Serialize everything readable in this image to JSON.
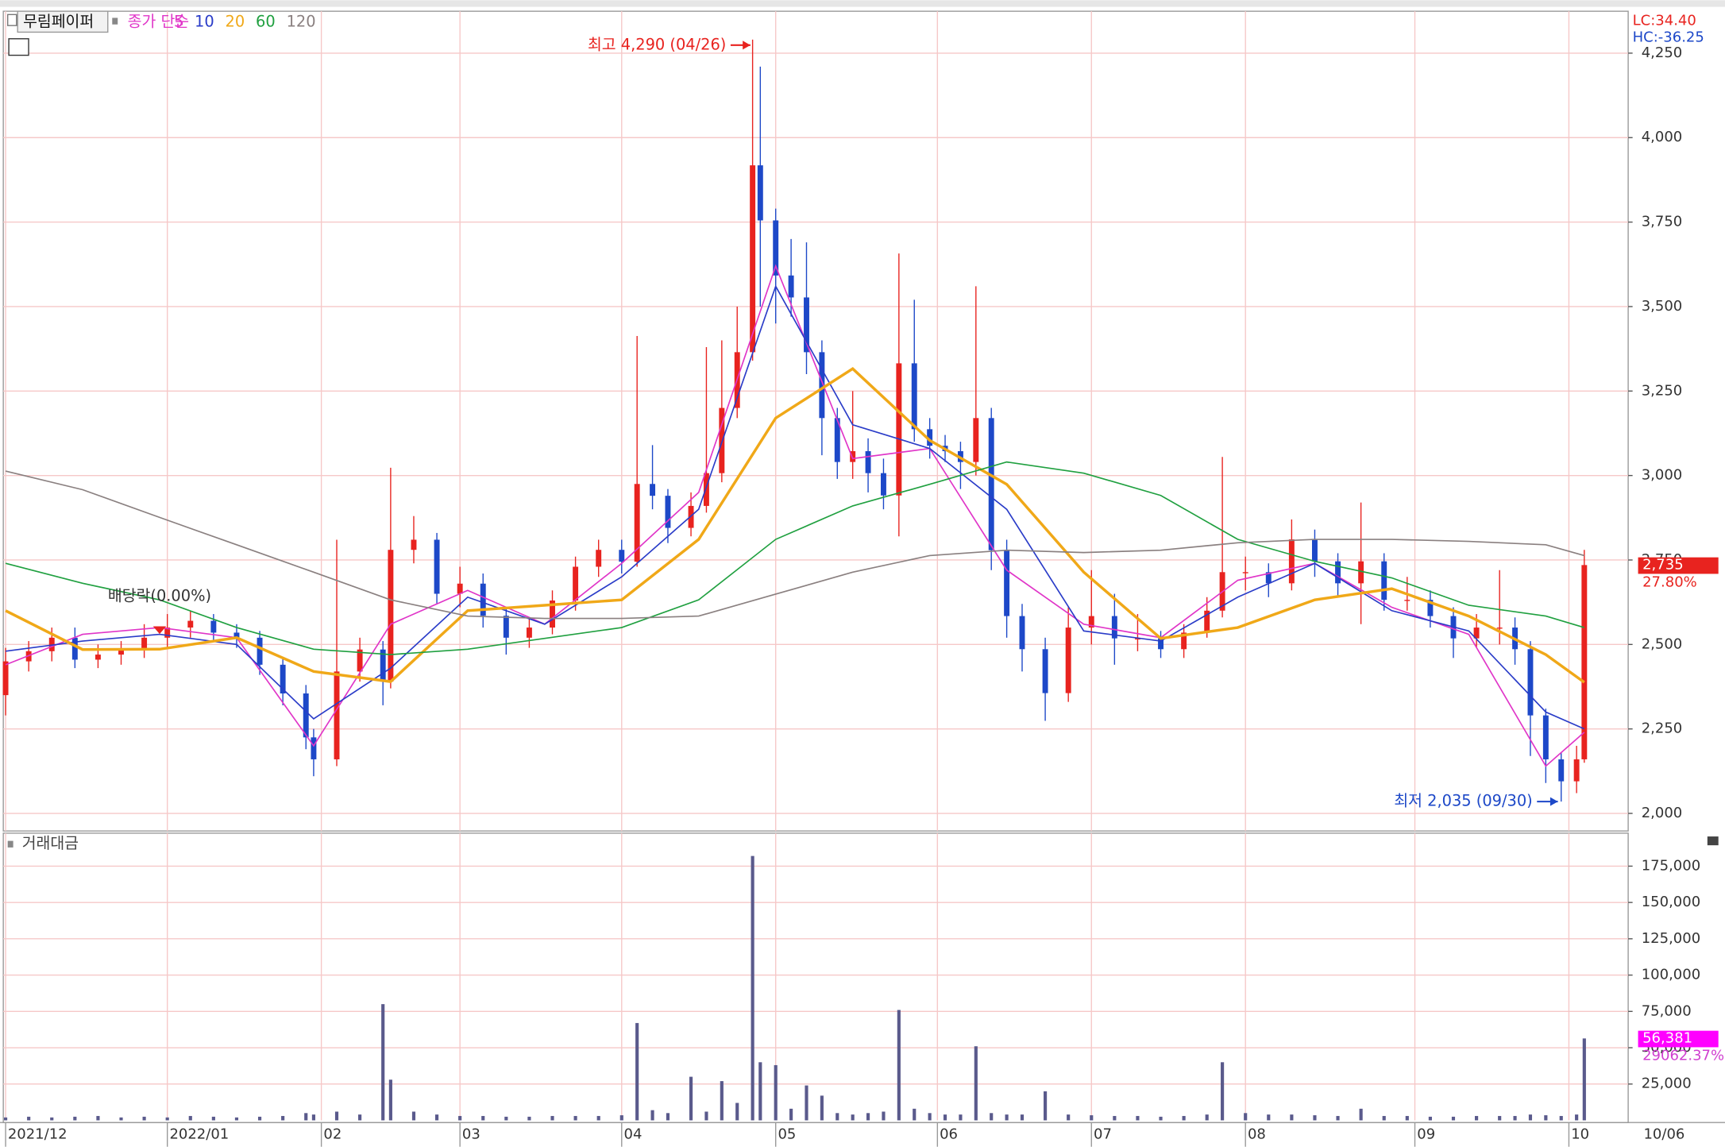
{
  "chart_data": [
    {
      "type": "candlestick",
      "title": "무림페이퍼",
      "legend_title": "종가 단순",
      "x": [
        0,
        3,
        6,
        9,
        12,
        15,
        18,
        21,
        24,
        27,
        30,
        33,
        36,
        39,
        40,
        43,
        46,
        49,
        50,
        53,
        56,
        59,
        62,
        65,
        68,
        71,
        74,
        77,
        80,
        82,
        84,
        86,
        89,
        91,
        93,
        95,
        97,
        98,
        100,
        102,
        104,
        106,
        108,
        110,
        112,
        114,
        116,
        118,
        120,
        122,
        124,
        126,
        128,
        130,
        132,
        135,
        138,
        141,
        144,
        147,
        150,
        153,
        156,
        158,
        161,
        164,
        167,
        170,
        173,
        176,
        179,
        182,
        185,
        188,
        191,
        194,
        196,
        198,
        200,
        202,
        204,
        205
      ],
      "open": [
        2350,
        2450,
        2480,
        2520,
        2455,
        2470,
        2485,
        2520,
        2550,
        2570,
        2535,
        2520,
        2440,
        2355,
        2225,
        2160,
        2420,
        2485,
        2390,
        2780,
        2810,
        2650,
        2680,
        2585,
        2520,
        2550,
        2630,
        2730,
        2780,
        2745,
        2975,
        2940,
        2845,
        2910,
        3007,
        3200,
        3365,
        3918,
        3755,
        3592,
        3527,
        3365,
        3170,
        3040,
        3072,
        3007,
        2941,
        3332,
        3137,
        3088,
        3072,
        3040,
        3170,
        2779,
        2584,
        2486,
        2356,
        2550,
        2584,
        2518,
        2518,
        2486,
        2535,
        2600,
        2714,
        2714,
        2681,
        2811,
        2746,
        2681,
        2746,
        2632,
        2632,
        2584,
        2518,
        2550,
        2550,
        2486,
        2290,
        2160,
        2095,
        2160
      ],
      "high": [
        2490,
        2510,
        2550,
        2550,
        2500,
        2510,
        2560,
        2590,
        2600,
        2590,
        2560,
        2540,
        2460,
        2380,
        2250,
        2810,
        2520,
        2510,
        3023,
        2880,
        2830,
        2730,
        2710,
        2610,
        2580,
        2660,
        2760,
        2810,
        2810,
        3413,
        3090,
        2960,
        2950,
        3380,
        3400,
        3500,
        4290,
        4210,
        3790,
        3700,
        3690,
        3400,
        3200,
        3250,
        3110,
        3050,
        3657,
        3520,
        3170,
        3120,
        3100,
        3560,
        3200,
        2810,
        2620,
        2520,
        2610,
        2720,
        2650,
        2590,
        2540,
        2560,
        2640,
        3055,
        2760,
        2740,
        2870,
        2840,
        2770,
        2920,
        2770,
        2700,
        2660,
        2610,
        2590,
        2720,
        2580,
        2510,
        2310,
        2180,
        2200,
        2780
      ],
      "low": [
        2290,
        2420,
        2450,
        2430,
        2430,
        2440,
        2460,
        2490,
        2520,
        2510,
        2490,
        2410,
        2320,
        2190,
        2110,
        2140,
        2390,
        2320,
        2370,
        2740,
        2620,
        2610,
        2550,
        2470,
        2490,
        2530,
        2600,
        2700,
        2710,
        2730,
        2900,
        2800,
        2820,
        2890,
        2980,
        3170,
        3340,
        3500,
        3450,
        3470,
        3300,
        3060,
        2990,
        2990,
        2950,
        2900,
        2820,
        3100,
        3050,
        3040,
        2960,
        3000,
        2720,
        2520,
        2420,
        2274,
        2330,
        2500,
        2440,
        2480,
        2460,
        2460,
        2520,
        2580,
        2660,
        2640,
        2660,
        2700,
        2640,
        2560,
        2600,
        2600,
        2550,
        2460,
        2490,
        2500,
        2440,
        2170,
        2090,
        2035,
        2060,
        2150
      ],
      "close": [
        2450,
        2480,
        2520,
        2455,
        2470,
        2485,
        2520,
        2550,
        2570,
        2535,
        2520,
        2440,
        2355,
        2225,
        2160,
        2420,
        2485,
        2390,
        2780,
        2810,
        2650,
        2680,
        2585,
        2520,
        2550,
        2630,
        2730,
        2780,
        2745,
        2975,
        2940,
        2845,
        2910,
        3007,
        3200,
        3365,
        3918,
        3755,
        3592,
        3527,
        3365,
        3170,
        3040,
        3072,
        3007,
        2941,
        3332,
        3137,
        3088,
        3072,
        3040,
        3170,
        2779,
        2584,
        2486,
        2356,
        2550,
        2584,
        2518,
        2518,
        2486,
        2535,
        2600,
        2714,
        2714,
        2681,
        2811,
        2746,
        2681,
        2746,
        2632,
        2632,
        2584,
        2518,
        2550,
        2550,
        2486,
        2290,
        2160,
        2095,
        2160,
        2735
      ],
      "up_color": "#e8231f",
      "down_color": "#1d48c8",
      "series": [
        {
          "name": "5",
          "color": "#e035c8",
          "x": [
            0,
            10,
            20,
            30,
            40,
            50,
            60,
            70,
            80,
            90,
            100,
            110,
            120,
            130,
            140,
            150,
            160,
            170,
            180,
            190,
            200,
            205
          ],
          "values": [
            2440,
            2530,
            2550,
            2520,
            2200,
            2560,
            2660,
            2560,
            2740,
            2950,
            3620,
            3050,
            3080,
            2720,
            2560,
            2520,
            2690,
            2740,
            2610,
            2530,
            2140,
            2240
          ]
        },
        {
          "name": "10",
          "color": "#2a3cc8",
          "x": [
            0,
            10,
            20,
            30,
            40,
            50,
            60,
            70,
            80,
            90,
            100,
            110,
            120,
            130,
            140,
            150,
            160,
            170,
            180,
            190,
            200,
            205
          ],
          "values": [
            2480,
            2510,
            2530,
            2500,
            2280,
            2430,
            2640,
            2560,
            2700,
            2900,
            3560,
            3150,
            3080,
            2900,
            2540,
            2510,
            2640,
            2740,
            2600,
            2540,
            2300,
            2250
          ]
        },
        {
          "name": "20",
          "color": "#f0a818",
          "x": [
            0,
            10,
            20,
            30,
            40,
            50,
            60,
            70,
            80,
            90,
            100,
            110,
            120,
            130,
            140,
            150,
            160,
            170,
            180,
            190,
            200,
            205
          ],
          "values": [
            2600,
            2485,
            2486,
            2520,
            2420,
            2390,
            2600,
            2616,
            2632,
            2811,
            3170,
            3316,
            3104,
            2974,
            2714,
            2518,
            2550,
            2632,
            2665,
            2584,
            2470,
            2388
          ]
        },
        {
          "name": "60",
          "color": "#20a040",
          "x": [
            0,
            10,
            20,
            30,
            40,
            50,
            60,
            70,
            80,
            90,
            100,
            110,
            120,
            130,
            140,
            150,
            160,
            170,
            180,
            190,
            200,
            205
          ],
          "values": [
            2740,
            2681,
            2632,
            2550,
            2486,
            2470,
            2486,
            2518,
            2550,
            2632,
            2811,
            2910,
            2974,
            3040,
            3007,
            2941,
            2811,
            2746,
            2697,
            2616,
            2584,
            2550
          ]
        },
        {
          "name": "120",
          "color": "#8a8080",
          "x": [
            0,
            10,
            20,
            30,
            40,
            50,
            60,
            70,
            80,
            90,
            100,
            110,
            120,
            130,
            140,
            150,
            160,
            170,
            180,
            190,
            200,
            205
          ],
          "values": [
            3013,
            2958,
            2876,
            2795,
            2714,
            2632,
            2584,
            2577,
            2577,
            2584,
            2649,
            2714,
            2763,
            2779,
            2772,
            2779,
            2801,
            2811,
            2811,
            2805,
            2795,
            2763
          ]
        }
      ],
      "xlim": [
        -0.3,
        210.7
      ],
      "ylim": [
        1948,
        4374
      ],
      "yticks": [
        {
          "value": 2000,
          "label": "2,000"
        },
        {
          "value": 2250,
          "label": "2,250"
        },
        {
          "value": 2500,
          "label": "2,500"
        },
        {
          "value": 2750,
          "label": "2,750"
        },
        {
          "value": 3000,
          "label": "3,000"
        },
        {
          "value": 3250,
          "label": "3,250"
        },
        {
          "value": 3500,
          "label": "3,500"
        },
        {
          "value": 3750,
          "label": "3,750"
        },
        {
          "value": 4000,
          "label": "4,000"
        },
        {
          "value": 4250,
          "label": "4,250"
        }
      ],
      "grid": true,
      "info": [
        "LC:34.40",
        "HC:-36.25"
      ],
      "high_note": {
        "text": "최고 4,290 (04/26)",
        "x": 97,
        "y": 4290
      },
      "low_note": {
        "text": "최저 2,035 (09/30)",
        "x": 202,
        "y": 2035
      },
      "dividend_note": {
        "text": "배당락(0.00%)",
        "x": 20
      },
      "last": {
        "value": 2735,
        "label": "2,735",
        "change": "27.80%"
      }
    },
    {
      "type": "bar",
      "title": "거래대금",
      "color": "#5a5a8c",
      "x": [
        0,
        3,
        6,
        9,
        12,
        15,
        18,
        21,
        24,
        27,
        30,
        33,
        36,
        39,
        40,
        43,
        46,
        49,
        50,
        53,
        56,
        59,
        62,
        65,
        68,
        71,
        74,
        77,
        80,
        82,
        84,
        86,
        89,
        91,
        93,
        95,
        97,
        98,
        100,
        102,
        104,
        106,
        108,
        110,
        112,
        114,
        116,
        118,
        120,
        122,
        124,
        126,
        128,
        130,
        132,
        135,
        138,
        141,
        144,
        147,
        150,
        153,
        156,
        158,
        161,
        164,
        167,
        170,
        173,
        176,
        179,
        182,
        185,
        188,
        191,
        194,
        196,
        198,
        200,
        202,
        204,
        205
      ],
      "values": [
        2000,
        2500,
        2000,
        2500,
        3000,
        2000,
        2500,
        2000,
        3000,
        2500,
        2000,
        2500,
        3000,
        5000,
        4000,
        6000,
        4000,
        80000,
        28000,
        6000,
        4000,
        3000,
        3000,
        2500,
        2500,
        3000,
        3000,
        3000,
        3500,
        67000,
        7000,
        5000,
        30000,
        6000,
        27000,
        12000,
        182000,
        40000,
        38000,
        8000,
        24000,
        17000,
        5000,
        4000,
        5000,
        6000,
        76000,
        8000,
        5000,
        4000,
        4000,
        51000,
        5000,
        4000,
        4000,
        20000,
        4000,
        3500,
        3000,
        3000,
        2500,
        3000,
        4000,
        40000,
        5000,
        4000,
        4000,
        3500,
        3000,
        8000,
        3000,
        3000,
        2500,
        2500,
        3000,
        3000,
        3000,
        4000,
        3500,
        3000,
        4000,
        56381
      ],
      "xlim": [
        -0.3,
        210.7
      ],
      "ylim": [
        0,
        197700
      ],
      "yticks": [
        {
          "value": 25000,
          "label": "25,000"
        },
        {
          "value": 50000,
          "label": "50,000"
        },
        {
          "value": 75000,
          "label": "75,000"
        },
        {
          "value": 100000,
          "label": "100,000"
        },
        {
          "value": 125000,
          "label": "125,000"
        },
        {
          "value": 150000,
          "label": "150,000"
        },
        {
          "value": 175000,
          "label": "175,000"
        }
      ],
      "xticks": [
        {
          "value": 0,
          "label": "2021/12"
        },
        {
          "value": 21,
          "label": "2022/01"
        },
        {
          "value": 41,
          "label": "02"
        },
        {
          "value": 59,
          "label": "03"
        },
        {
          "value": 80,
          "label": "04"
        },
        {
          "value": 100,
          "label": "05"
        },
        {
          "value": 121,
          "label": "06"
        },
        {
          "value": 141,
          "label": "07"
        },
        {
          "value": 161,
          "label": "08"
        },
        {
          "value": 183,
          "label": "09"
        },
        {
          "value": 203,
          "label": "10"
        }
      ],
      "grid": true,
      "last": {
        "value": 56381,
        "label": "56,381",
        "ratio": "29062.37%"
      },
      "date_label": "10/06"
    }
  ]
}
